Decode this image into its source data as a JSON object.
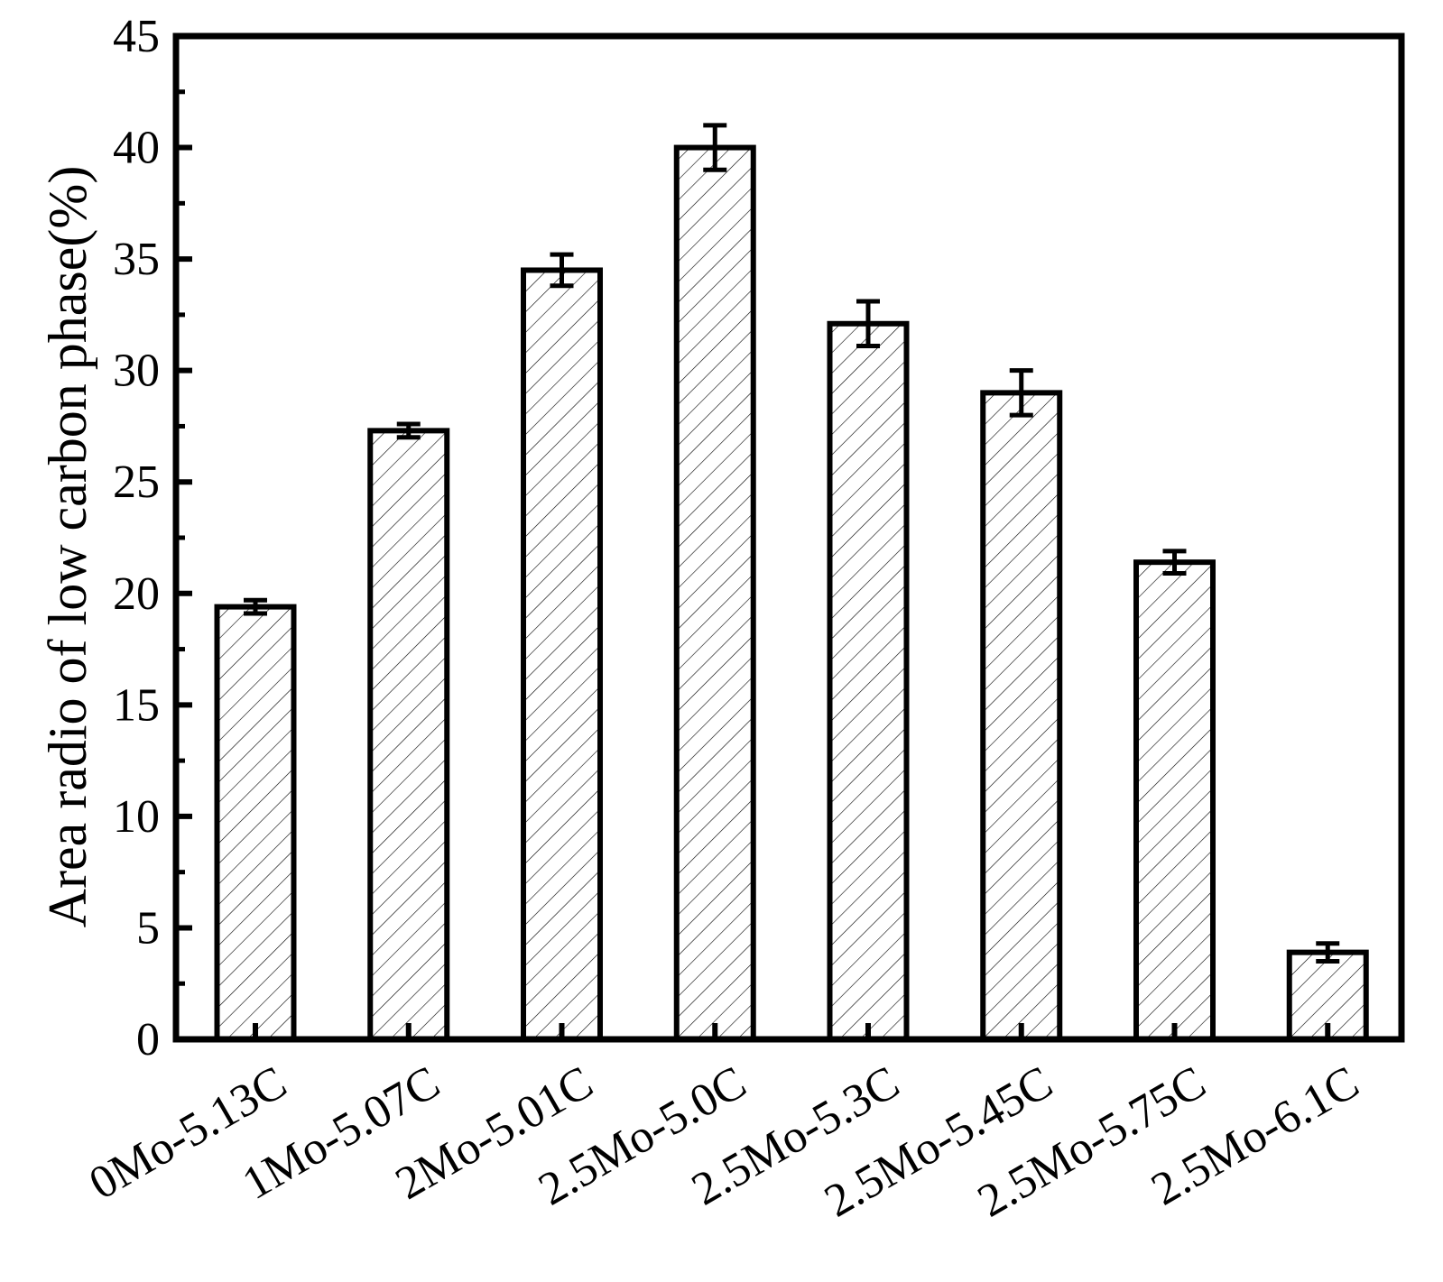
{
  "chart_data": {
    "type": "bar",
    "title": "",
    "xlabel": "",
    "ylabel": "Area radio of low carbon phase(%)",
    "ylim": [
      0,
      45
    ],
    "yticks": [
      0,
      5,
      10,
      15,
      20,
      25,
      30,
      35,
      40,
      45
    ],
    "grid": false,
    "legend": "none",
    "bar_pattern": "diagonal-hatch",
    "categories": [
      "0Mo-5.13C",
      "1Mo-5.07C",
      "2Mo-5.01C",
      "2.5Mo-5.0C",
      "2.5Mo-5.3C",
      "2.5Mo-5.45C",
      "2.5Mo-5.75C",
      "2.5Mo-6.1C"
    ],
    "values": [
      19.4,
      27.3,
      34.5,
      40.0,
      32.1,
      29.0,
      21.4,
      3.9
    ],
    "errors": [
      0.3,
      0.3,
      0.7,
      1.0,
      1.0,
      1.0,
      0.5,
      0.4
    ],
    "colors": {
      "bar_fill": "#ffffff",
      "bar_stroke": "#000000",
      "hatch": "#000000",
      "axis": "#000000"
    }
  }
}
